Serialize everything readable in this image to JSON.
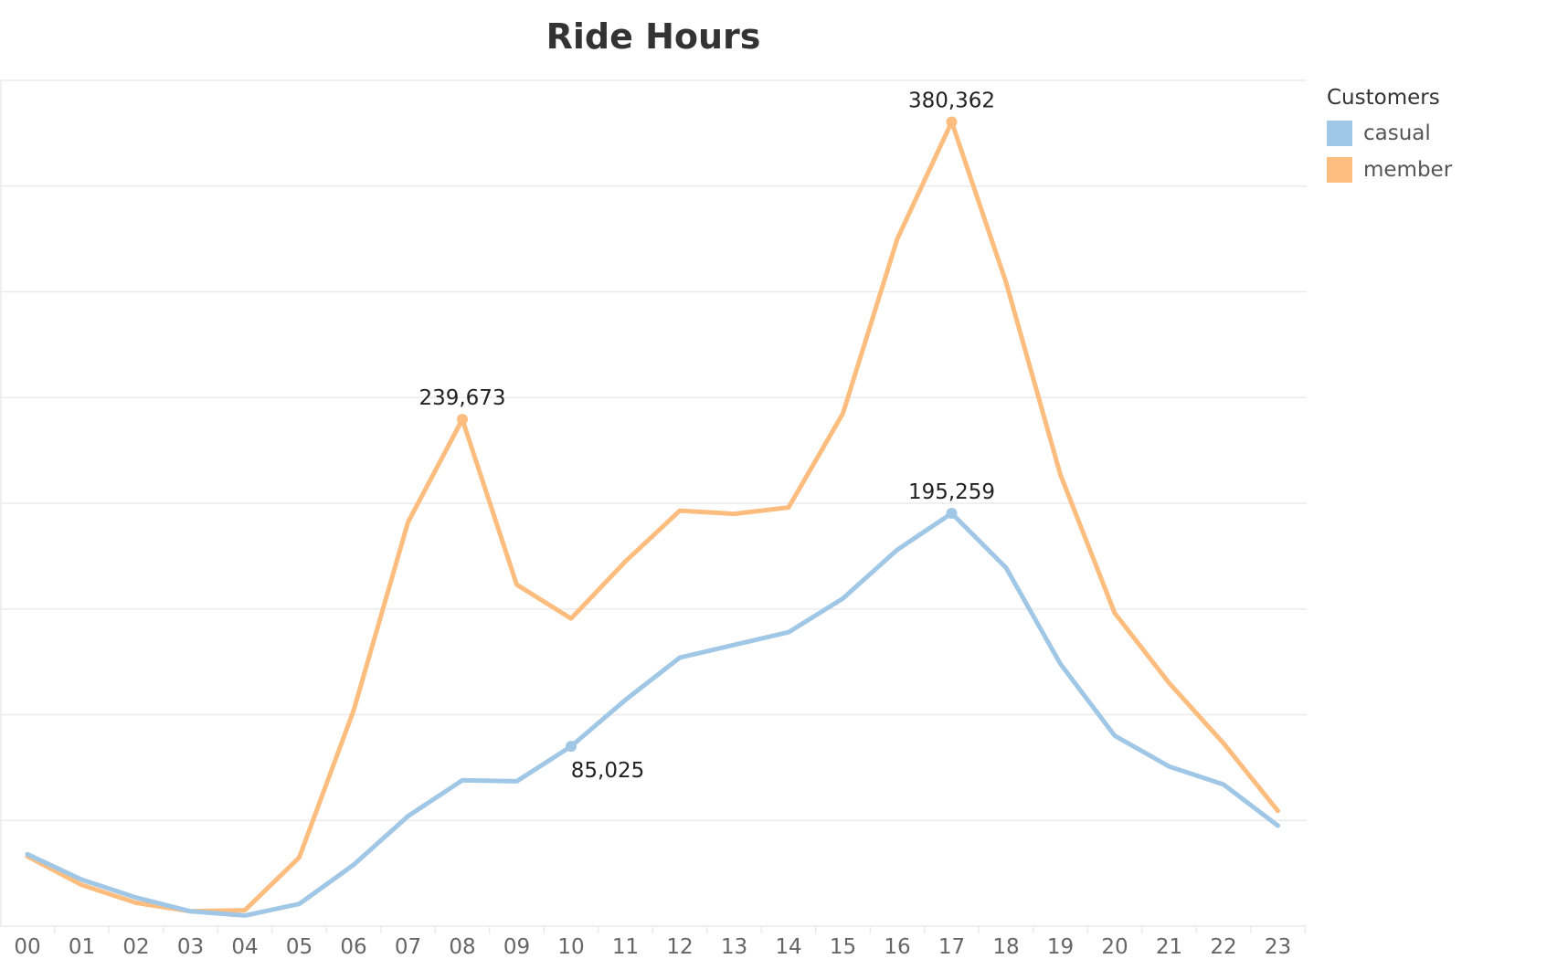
{
  "chart_data": {
    "type": "line",
    "title": "Ride Hours",
    "categories": [
      "00",
      "01",
      "02",
      "03",
      "04",
      "05",
      "06",
      "07",
      "08",
      "09",
      "10",
      "11",
      "12",
      "13",
      "14",
      "15",
      "16",
      "17",
      "18",
      "19",
      "20",
      "21",
      "22",
      "23"
    ],
    "ylim": [
      0,
      400000
    ],
    "grid": true,
    "legend": {
      "title": "Customers",
      "placement": "right"
    },
    "series": [
      {
        "name": "casual",
        "color": "#a0c8e6",
        "values": [
          34000,
          22000,
          13500,
          7000,
          5000,
          10500,
          29000,
          52000,
          69000,
          68500,
          85025,
          107000,
          127000,
          133000,
          139000,
          155000,
          178000,
          195259,
          169500,
          124000,
          90000,
          75500,
          67000,
          47500
        ],
        "labels": [
          {
            "index": 10,
            "text": "85,025",
            "position": "below"
          },
          {
            "index": 17,
            "text": "195,259",
            "position": "above"
          }
        ]
      },
      {
        "name": "member",
        "color": "#fdbd7f",
        "values": [
          33000,
          19500,
          11000,
          7000,
          7500,
          32500,
          102000,
          191000,
          239673,
          161500,
          145500,
          172500,
          196500,
          195000,
          198000,
          242500,
          325000,
          380362,
          304500,
          213500,
          148000,
          115000,
          86500,
          54500
        ],
        "labels": [
          {
            "index": 8,
            "text": "239,673",
            "position": "above"
          },
          {
            "index": 17,
            "text": "380,362",
            "position": "above"
          }
        ]
      }
    ]
  }
}
